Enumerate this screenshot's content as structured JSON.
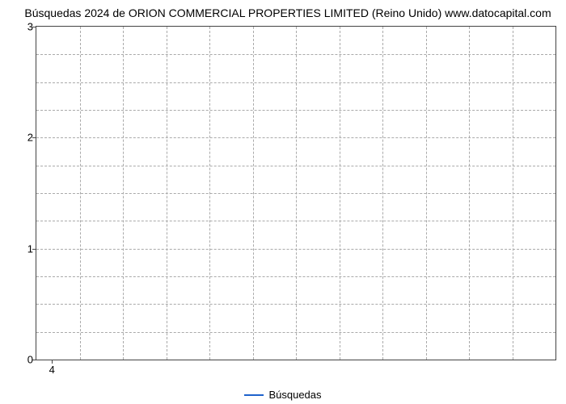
{
  "chart": {
    "type": "line",
    "title": "Búsquedas 2024 de ORION COMMERCIAL PROPERTIES LIMITED (Reino Unido) www.datocapital.com",
    "title_fontsize": 14,
    "title_color": "#000000",
    "background_color": "#ffffff",
    "plot_border_color": "#444444",
    "grid_color": "#aaaaaa",
    "grid_style": "dashed",
    "y_axis": {
      "min": 0,
      "max": 3,
      "ticks": [
        0,
        1,
        2,
        3
      ],
      "minor_lines_per_major": 4,
      "label_fontsize": 13,
      "label_color": "#000000"
    },
    "x_axis": {
      "ticks": [
        4
      ],
      "tick_positions_pct": [
        3
      ],
      "vertical_gridlines_count": 11,
      "label_fontsize": 13,
      "label_color": "#000000"
    },
    "series": [
      {
        "name": "Búsquedas",
        "color": "#1e62cc",
        "line_width": 2,
        "data": []
      }
    ],
    "legend": {
      "position": "bottom-center",
      "fontsize": 13,
      "label": "Búsquedas",
      "line_color": "#1e62cc"
    }
  }
}
